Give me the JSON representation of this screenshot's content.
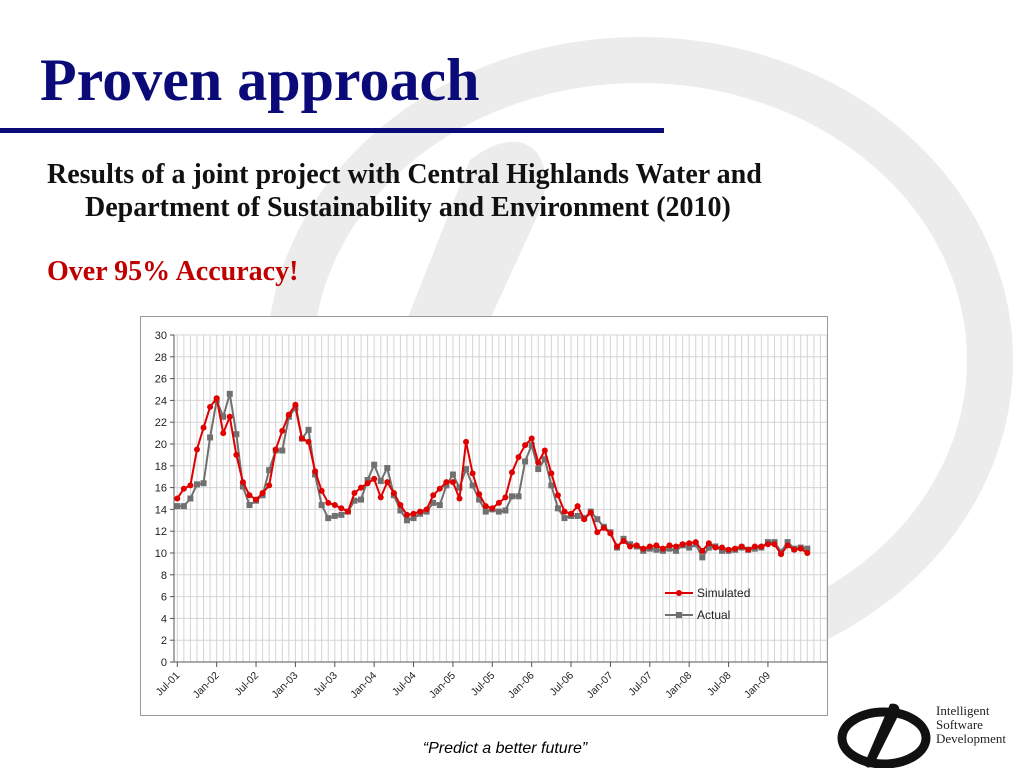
{
  "slide": {
    "title": "Proven approach",
    "subtitle_line1": "Results of a joint project with Central Highlands Water and",
    "subtitle_line2": "Department of Sustainability and Environment (2010)",
    "highlight": "Over 95% Accuracy!",
    "tagline": "“Predict a better future”"
  },
  "logo": {
    "line1": "Intelligent",
    "line2": "Software",
    "line3": "Development"
  },
  "colors": {
    "title": "#0a0a78",
    "highlight": "#c00000",
    "simulated": "#e00000",
    "actual": "#707070",
    "grid": "#d4d4d4"
  },
  "chart_data": {
    "type": "line",
    "ylim": [
      0,
      30
    ],
    "yticks": [
      0,
      2,
      4,
      6,
      8,
      10,
      12,
      14,
      16,
      18,
      20,
      22,
      24,
      26,
      28,
      30
    ],
    "x_tick_labels": [
      "Jul-01",
      "Jan-02",
      "Jul-02",
      "Jan-03",
      "Jul-03",
      "Jan-04",
      "Jul-04",
      "Jan-05",
      "Jul-05",
      "Jan-06",
      "Jul-06",
      "Jan-07",
      "Jul-07",
      "Jan-08",
      "Jul-08",
      "Jan-09"
    ],
    "x_start": "Jul-01",
    "grid": true,
    "legend_position": "right-middle",
    "series": [
      {
        "name": "Simulated",
        "marker": "circle",
        "values": [
          15.0,
          15.9,
          16.2,
          19.5,
          21.5,
          23.4,
          24.2,
          21.0,
          22.5,
          19.0,
          16.5,
          15.3,
          14.9,
          15.5,
          16.2,
          19.5,
          21.2,
          22.7,
          23.6,
          20.5,
          20.2,
          17.5,
          15.7,
          14.6,
          14.4,
          14.1,
          13.8,
          15.5,
          16.0,
          16.4,
          16.8,
          15.1,
          16.5,
          15.5,
          14.4,
          13.5,
          13.6,
          13.8,
          14.0,
          15.3,
          15.9,
          16.5,
          16.5,
          15.0,
          20.2,
          17.3,
          15.4,
          14.3,
          14.1,
          14.6,
          15.1,
          17.4,
          18.8,
          19.9,
          20.5,
          18.3,
          19.4,
          17.3,
          15.3,
          13.8,
          13.6,
          14.3,
          13.1,
          13.7,
          11.9,
          12.3,
          11.8,
          10.6,
          11.1,
          10.6,
          10.7,
          10.4,
          10.6,
          10.7,
          10.4,
          10.7,
          10.6,
          10.8,
          10.9,
          11.0,
          10.2,
          10.9,
          10.5,
          10.5,
          10.3,
          10.4,
          10.6,
          10.3,
          10.6,
          10.6,
          10.8,
          10.8,
          9.9,
          10.7,
          10.3,
          10.4,
          10.0
        ]
      },
      {
        "name": "Actual",
        "marker": "square",
        "values": [
          14.3,
          14.3,
          15.0,
          16.3,
          16.4,
          20.6,
          24.0,
          22.5,
          24.6,
          20.9,
          16.1,
          14.4,
          14.8,
          15.3,
          17.6,
          19.4,
          19.4,
          22.5,
          23.3,
          20.5,
          21.3,
          17.2,
          14.4,
          13.2,
          13.4,
          13.5,
          13.8,
          14.8,
          14.9,
          16.7,
          18.1,
          16.6,
          17.8,
          15.3,
          13.9,
          13.0,
          13.2,
          13.6,
          13.8,
          14.6,
          14.4,
          16.2,
          17.2,
          16.0,
          17.7,
          16.2,
          14.9,
          13.8,
          14.0,
          13.8,
          13.9,
          15.2,
          15.2,
          18.4,
          19.9,
          17.7,
          18.6,
          16.2,
          14.1,
          13.2,
          13.4,
          13.4,
          13.2,
          13.8,
          13.1,
          12.4,
          11.9,
          10.5,
          11.3,
          10.8,
          10.6,
          10.2,
          10.4,
          10.3,
          10.2,
          10.4,
          10.2,
          10.7,
          10.5,
          10.8,
          9.6,
          10.5,
          10.6,
          10.2,
          10.2,
          10.3,
          10.5,
          10.3,
          10.4,
          10.5,
          11.0,
          11.0,
          10.1,
          11.0,
          10.4,
          10.5,
          10.4
        ]
      }
    ]
  }
}
